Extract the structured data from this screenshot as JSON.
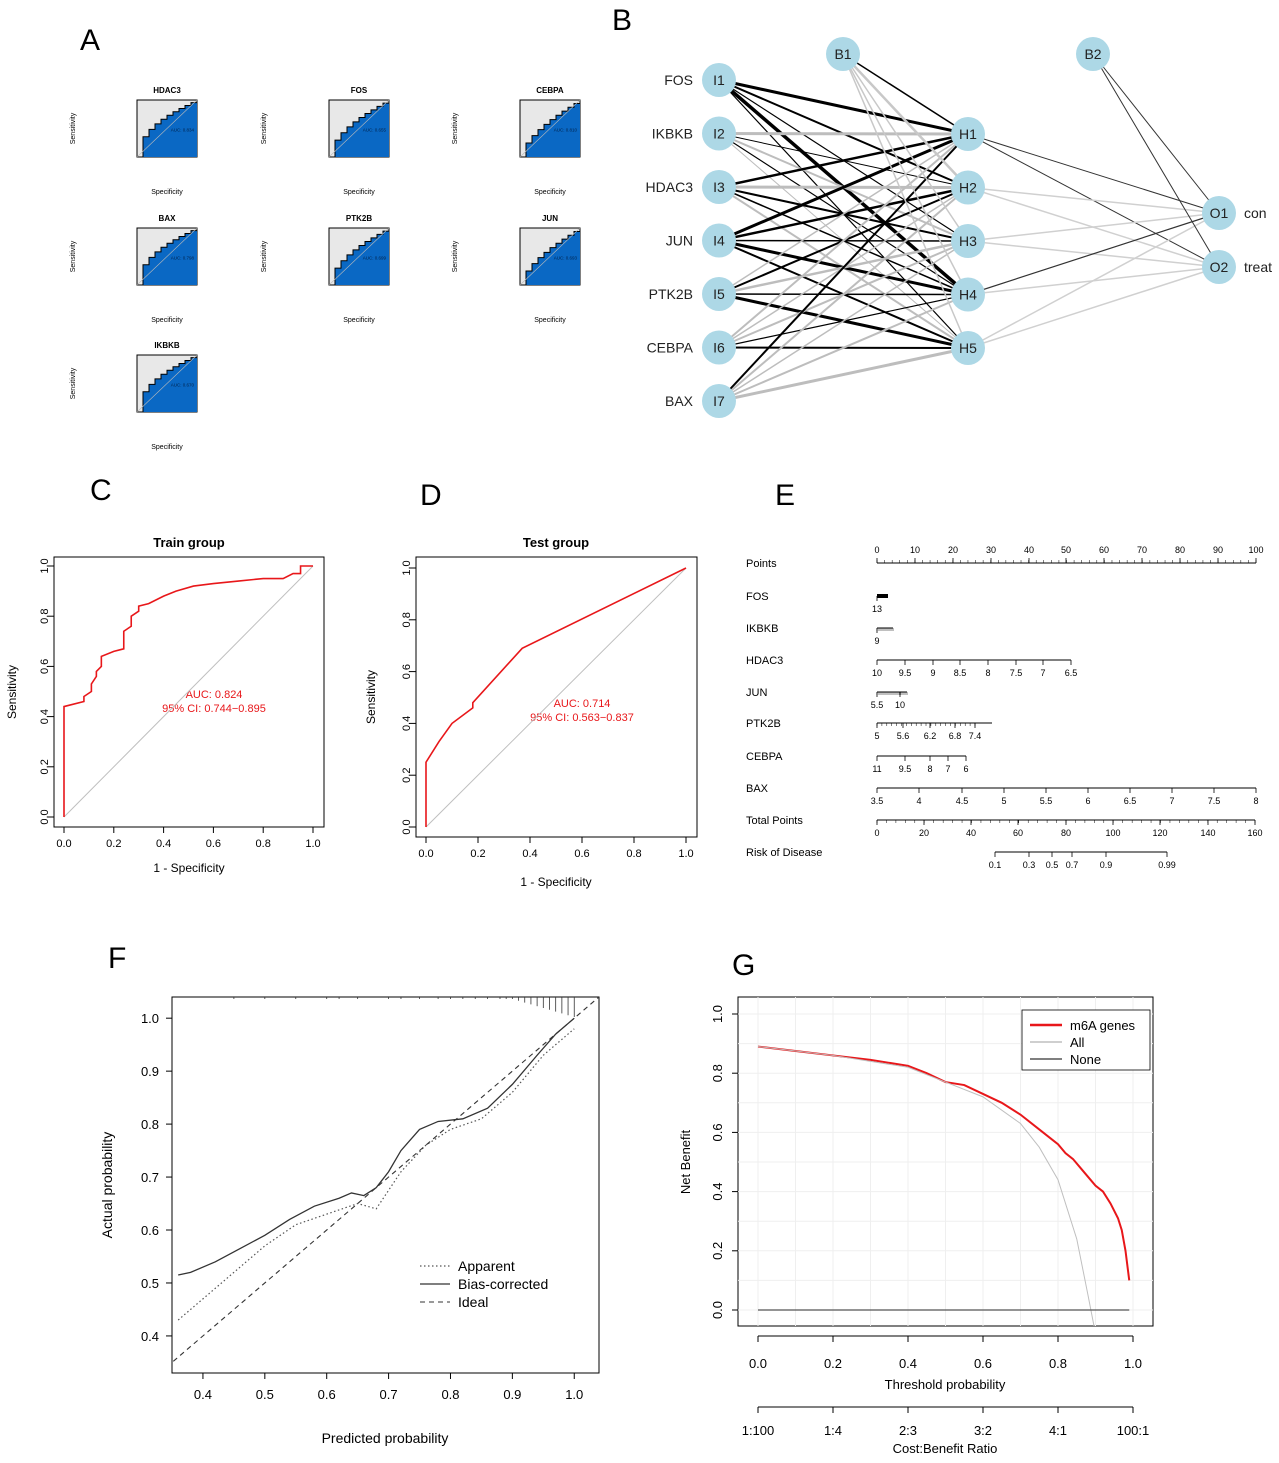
{
  "panel_letters": [
    "A",
    "B",
    "C",
    "D",
    "E",
    "F",
    "G"
  ],
  "chart_data": [
    {
      "panel": "A",
      "type": "line",
      "description_labels": {
        "x": "Specificity",
        "y": "Sensitivity"
      },
      "mini_rocs": [
        {
          "gene": "HDAC3",
          "auc_text": "AUC: 0.834"
        },
        {
          "gene": "FOS",
          "auc_text": "AUC: 0.655"
        },
        {
          "gene": "CEBPA",
          "auc_text": "AUC: 0.810"
        },
        {
          "gene": "BAX",
          "auc_text": "AUC: 0.798"
        },
        {
          "gene": "PTK2B",
          "auc_text": "AUC: 0.699"
        },
        {
          "gene": "JUN",
          "auc_text": "AUC: 0.693"
        },
        {
          "gene": "IKBKB",
          "auc_text": "AUC: 0.670"
        }
      ]
    },
    {
      "panel": "B",
      "type": "diagram",
      "input_nodes": [
        "I1",
        "I2",
        "I3",
        "I4",
        "I5",
        "I6",
        "I7"
      ],
      "input_labels": [
        "FOS",
        "IKBKB",
        "HDAC3",
        "JUN",
        "PTK2B",
        "CEBPA",
        "BAX"
      ],
      "hidden_nodes": [
        "H1",
        "H2",
        "H3",
        "H4",
        "H5"
      ],
      "bias_nodes": [
        "B1",
        "B2"
      ],
      "output_nodes": [
        "O1",
        "O2"
      ],
      "output_labels": [
        "con",
        "treat"
      ]
    },
    {
      "panel": "C",
      "type": "line",
      "title": "Train group",
      "xlabel": "1 - Specificity",
      "ylabel": "Sensitivity",
      "xlim": [
        0,
        1
      ],
      "ylim": [
        0,
        1
      ],
      "xticks": [
        "0.0",
        "0.2",
        "0.4",
        "0.6",
        "0.8",
        "1.0"
      ],
      "yticks": [
        "0.0",
        "0.2",
        "0.4",
        "0.6",
        "0.8",
        "1.0"
      ],
      "auc_text": "AUC: 0.824",
      "ci_text": "95% CI: 0.744−0.895",
      "x": [
        0,
        0,
        0.08,
        0.08,
        0.11,
        0.11,
        0.13,
        0.13,
        0.15,
        0.15,
        0.2,
        0.2,
        0.24,
        0.24,
        0.27,
        0.27,
        0.3,
        0.3,
        0.34,
        0.4,
        0.45,
        0.52,
        0.6,
        0.7,
        0.8,
        0.88,
        0.92,
        0.95,
        0.95,
        1.0
      ],
      "y": [
        0,
        0.44,
        0.46,
        0.48,
        0.5,
        0.53,
        0.56,
        0.58,
        0.6,
        0.64,
        0.66,
        0.66,
        0.67,
        0.74,
        0.76,
        0.8,
        0.82,
        0.84,
        0.85,
        0.88,
        0.9,
        0.92,
        0.93,
        0.94,
        0.95,
        0.95,
        0.97,
        0.97,
        1.0,
        1.0
      ]
    },
    {
      "panel": "D",
      "type": "line",
      "title": "Test group",
      "xlabel": "1 - Specificity",
      "ylabel": "Sensitivity",
      "xlim": [
        0,
        1
      ],
      "ylim": [
        0,
        1
      ],
      "xticks": [
        "0.0",
        "0.2",
        "0.4",
        "0.6",
        "0.8",
        "1.0"
      ],
      "yticks": [
        "0.0",
        "0.2",
        "0.4",
        "0.6",
        "0.8",
        "1.0"
      ],
      "auc_text": "AUC: 0.714",
      "ci_text": "95% CI: 0.563−0.837",
      "x": [
        0,
        0,
        0.05,
        0.1,
        0.18,
        0.18,
        0.37,
        1.0
      ],
      "y": [
        0,
        0.25,
        0.33,
        0.4,
        0.46,
        0.48,
        0.69,
        1.0
      ]
    },
    {
      "panel": "E",
      "type": "table",
      "rows": [
        {
          "label": "Points",
          "ticks": [
            "0",
            "10",
            "20",
            "30",
            "40",
            "50",
            "60",
            "70",
            "80",
            "90",
            "100"
          ]
        },
        {
          "label": "FOS",
          "ticks": [
            "13"
          ]
        },
        {
          "label": "IKBKB",
          "ticks": [
            "9"
          ]
        },
        {
          "label": "HDAC3",
          "ticks": [
            "10",
            "9.5",
            "9",
            "8.5",
            "8",
            "7.5",
            "7",
            "6.5"
          ]
        },
        {
          "label": "JUN",
          "ticks": [
            "5.5",
            "10"
          ]
        },
        {
          "label": "PTK2B",
          "ticks": [
            "5",
            "5.6",
            "6.2",
            "6.8",
            "7.4"
          ]
        },
        {
          "label": "CEBPA",
          "ticks": [
            "11",
            "9.5",
            "8",
            "7",
            "6"
          ]
        },
        {
          "label": "BAX",
          "ticks": [
            "3.5",
            "4",
            "4.5",
            "5",
            "5.5",
            "6",
            "6.5",
            "7",
            "7.5",
            "8"
          ]
        },
        {
          "label": "Total Points",
          "ticks": [
            "0",
            "20",
            "40",
            "60",
            "80",
            "100",
            "120",
            "140",
            "160"
          ]
        },
        {
          "label": "Risk of Disease",
          "ticks": [
            "0.1",
            "0.3",
            "0.5",
            "0.7",
            "0.9",
            "0.99"
          ]
        }
      ]
    },
    {
      "panel": "F",
      "type": "line",
      "xlabel": "Predicted probability",
      "ylabel": "Actual probability",
      "xlim": [
        0.35,
        1.04
      ],
      "ylim": [
        0.33,
        1.04
      ],
      "xticks": [
        "0.4",
        "0.5",
        "0.6",
        "0.7",
        "0.8",
        "0.9",
        "1.0"
      ],
      "yticks": [
        "0.4",
        "0.5",
        "0.6",
        "0.7",
        "0.8",
        "0.9",
        "1.0"
      ],
      "legend": [
        "Apparent",
        "Bias-corrected",
        "Ideal"
      ],
      "series": [
        {
          "name": "Apparent",
          "x": [
            0.36,
            0.4,
            0.45,
            0.5,
            0.55,
            0.6,
            0.65,
            0.68,
            0.72,
            0.76,
            0.8,
            0.85,
            0.9,
            0.95,
            1.0
          ],
          "y": [
            0.43,
            0.47,
            0.52,
            0.57,
            0.61,
            0.63,
            0.65,
            0.64,
            0.71,
            0.76,
            0.79,
            0.81,
            0.86,
            0.93,
            0.98
          ]
        },
        {
          "name": "Bias-corrected",
          "x": [
            0.36,
            0.38,
            0.42,
            0.46,
            0.5,
            0.54,
            0.58,
            0.62,
            0.64,
            0.66,
            0.68,
            0.7,
            0.72,
            0.75,
            0.78,
            0.82,
            0.86,
            0.9,
            0.94,
            0.97,
            1.0
          ],
          "y": [
            0.515,
            0.52,
            0.54,
            0.565,
            0.59,
            0.62,
            0.645,
            0.66,
            0.67,
            0.665,
            0.68,
            0.71,
            0.75,
            0.79,
            0.805,
            0.81,
            0.83,
            0.875,
            0.93,
            0.97,
            1.0
          ]
        },
        {
          "name": "Ideal",
          "x": [
            0.33,
            1.04
          ],
          "y": [
            0.33,
            1.04
          ]
        }
      ]
    },
    {
      "panel": "G",
      "type": "line",
      "xlabel": "Threshold probability",
      "ylabel": "Net Benefit",
      "x2label": "Cost:Benefit Ratio",
      "xlim": [
        0,
        1
      ],
      "ylim": [
        -0.05,
        1.0
      ],
      "xticks": [
        "0.0",
        "0.2",
        "0.4",
        "0.6",
        "0.8",
        "1.0"
      ],
      "yticks": [
        "0.0",
        "0.2",
        "0.4",
        "0.6",
        "0.8",
        "1.0"
      ],
      "x2ticks": [
        "1:100",
        "1:4",
        "2:3",
        "3:2",
        "4:1",
        "100:1"
      ],
      "legend": [
        "m6A genes",
        "All",
        "None"
      ],
      "colors": {
        "model": "#e8171a",
        "all": "#bfbfbf",
        "none": "#555555"
      },
      "series": [
        {
          "name": "m6A genes",
          "x": [
            0,
            0.1,
            0.2,
            0.3,
            0.4,
            0.45,
            0.5,
            0.55,
            0.6,
            0.65,
            0.7,
            0.75,
            0.8,
            0.82,
            0.84,
            0.86,
            0.88,
            0.9,
            0.92,
            0.94,
            0.96,
            0.97,
            0.98,
            0.99
          ],
          "y": [
            0.89,
            0.875,
            0.86,
            0.845,
            0.825,
            0.8,
            0.77,
            0.76,
            0.73,
            0.7,
            0.66,
            0.61,
            0.56,
            0.53,
            0.51,
            0.48,
            0.45,
            0.42,
            0.4,
            0.36,
            0.31,
            0.27,
            0.2,
            0.1
          ]
        },
        {
          "name": "All",
          "x": [
            0,
            0.2,
            0.4,
            0.5,
            0.6,
            0.7,
            0.75,
            0.8,
            0.85,
            0.88,
            0.9
          ],
          "y": [
            0.89,
            0.86,
            0.82,
            0.77,
            0.72,
            0.63,
            0.55,
            0.44,
            0.24,
            0.05,
            -0.08
          ]
        },
        {
          "name": "None",
          "x": [
            0,
            0.99
          ],
          "y": [
            0,
            0
          ]
        }
      ]
    }
  ]
}
